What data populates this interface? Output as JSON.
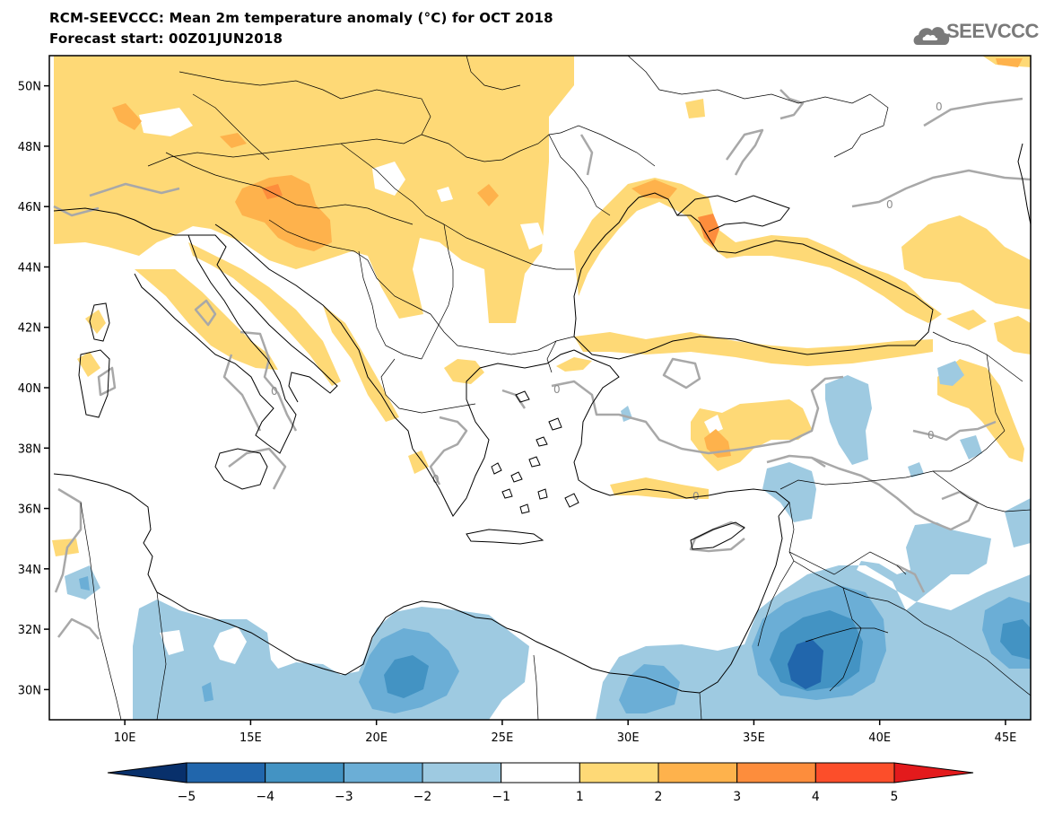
{
  "title_line1": "RCM-SEEVCCC: Mean 2m temperature anomaly (°C) for OCT 2018",
  "title_line2": "Forecast start: 00Z01JUN2018",
  "logo_text": "SEEVCCC",
  "map": {
    "lon_range": [
      7,
      46
    ],
    "lat_range": [
      29,
      51
    ],
    "lon_ticks": [
      {
        "value": 10,
        "label": "10E"
      },
      {
        "value": 15,
        "label": "15E"
      },
      {
        "value": 20,
        "label": "20E"
      },
      {
        "value": 25,
        "label": "25E"
      },
      {
        "value": 30,
        "label": "30E"
      },
      {
        "value": 35,
        "label": "35E"
      },
      {
        "value": 40,
        "label": "40E"
      },
      {
        "value": 45,
        "label": "45E"
      }
    ],
    "lat_ticks": [
      {
        "value": 50,
        "label": "50N"
      },
      {
        "value": 48,
        "label": "48N"
      },
      {
        "value": 46,
        "label": "46N"
      },
      {
        "value": 44,
        "label": "44N"
      },
      {
        "value": 42,
        "label": "42N"
      },
      {
        "value": 40,
        "label": "40N"
      },
      {
        "value": 38,
        "label": "38N"
      },
      {
        "value": 36,
        "label": "36N"
      },
      {
        "value": 34,
        "label": "34N"
      },
      {
        "value": 32,
        "label": "32N"
      },
      {
        "value": 30,
        "label": "30N"
      }
    ],
    "zero_contour_label": "0"
  },
  "colorbar": {
    "colors": [
      "#08306b",
      "#2166ac",
      "#4393c3",
      "#6baed6",
      "#9ecae1",
      "#ffffff",
      "#fed976",
      "#feb24c",
      "#fd8d3c",
      "#fc4e2a",
      "#e31a1c"
    ],
    "labels": [
      "−5",
      "−4",
      "−3",
      "−2",
      "−1",
      "1",
      "2",
      "3",
      "4",
      "5"
    ]
  }
}
